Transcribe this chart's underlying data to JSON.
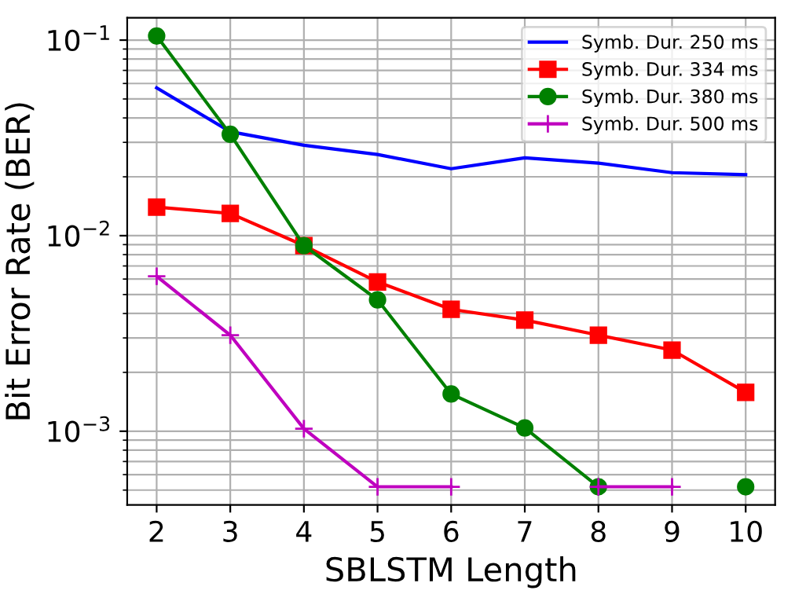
{
  "chart_data": {
    "type": "line",
    "xlabel": "SBLSTM Length",
    "ylabel": "Bit Error Rate (BER)",
    "x": [
      2,
      3,
      4,
      5,
      6,
      7,
      8,
      9,
      10
    ],
    "series": [
      {
        "name": "Symb. Dur. 250 ms",
        "color": "#0000ff",
        "marker": "none",
        "values": [
          0.057,
          0.034,
          0.029,
          0.026,
          0.022,
          0.025,
          0.0235,
          0.021,
          0.0205
        ]
      },
      {
        "name": "Symb. Dur. 334 ms",
        "color": "#ff0000",
        "marker": "square",
        "values": [
          0.014,
          0.013,
          0.0089,
          0.0058,
          0.0042,
          0.0037,
          0.0031,
          0.0026,
          0.00158
        ]
      },
      {
        "name": "Symb. Dur. 380 ms",
        "color": "#008000",
        "marker": "circle",
        "values": [
          0.105,
          0.033,
          0.0089,
          0.0047,
          0.00155,
          0.00104,
          0.00052,
          null,
          0.00052
        ]
      },
      {
        "name": "Symb. Dur. 500 ms",
        "color": "#bf00bf",
        "marker": "cross",
        "values": [
          0.0062,
          0.0031,
          0.00103,
          0.00052,
          0.00052,
          null,
          0.00052,
          0.00052,
          null
        ]
      }
    ],
    "log": "y",
    "xlim": [
      1.6,
      10.4
    ],
    "xticks": [
      2,
      3,
      4,
      5,
      6,
      7,
      8,
      9,
      10
    ],
    "ylim": [
      0.00042,
      0.13
    ],
    "yticks": [
      {
        "value": 0.001,
        "label": "10$^{−3}$"
      },
      {
        "value": 0.01,
        "label": "10$^{−2}$"
      },
      {
        "value": 0.1,
        "label": "10$^{−1}$"
      }
    ],
    "grid": true,
    "legend": "top right"
  }
}
